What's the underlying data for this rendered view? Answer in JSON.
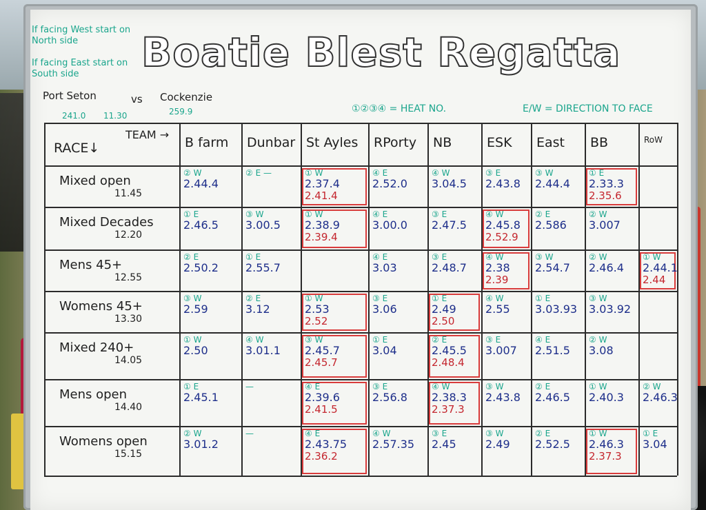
{
  "board": {
    "title": "Boatie Blest Regatta",
    "notes": [
      "If facing West start on North side",
      "If facing East start on South side"
    ],
    "matchup": {
      "left": "Port Seton",
      "vs": "vs",
      "right": "Cockenzie",
      "left_score": "241.0",
      "left_score2": "11.30",
      "right_score": "259.9"
    },
    "legend_heat": "①②③④ = HEAT NO.",
    "legend_dir": "E/W = DIRECTION TO FACE"
  },
  "table": {
    "corner_race": "RACE↓",
    "corner_team": "TEAM →",
    "teams": [
      "B farm",
      "Dunbar",
      "St Ayles",
      "RPorty",
      "NB",
      "ESK",
      "East",
      "BB",
      "RoW"
    ],
    "rows": [
      {
        "race": "Mixed open",
        "time": "11.45",
        "cells": [
          {
            "heat": "② W",
            "t1": "2.44.4",
            "t2": ""
          },
          {
            "heat": "② E —",
            "t1": "",
            "t2": ""
          },
          {
            "heat": "① W",
            "t1": "2.37.4",
            "t2": "2.41.4"
          },
          {
            "heat": "④ E",
            "t1": "2.52.0",
            "t2": ""
          },
          {
            "heat": "④ W",
            "t1": "3.04.5",
            "t2": ""
          },
          {
            "heat": "③ E",
            "t1": "2.43.8",
            "t2": ""
          },
          {
            "heat": "③ W",
            "t1": "2.44.4",
            "t2": ""
          },
          {
            "heat": "① E",
            "t1": "2.33.3",
            "t2": "2.35.6"
          },
          {
            "heat": "",
            "t1": "",
            "t2": ""
          }
        ]
      },
      {
        "race": "Mixed Decades",
        "time": "12.20",
        "cells": [
          {
            "heat": "① E",
            "t1": "2.46.5",
            "t2": ""
          },
          {
            "heat": "③ W",
            "t1": "3.00.5",
            "t2": ""
          },
          {
            "heat": "① W",
            "t1": "2.38.9",
            "t2": "2.39.4"
          },
          {
            "heat": "④ E",
            "t1": "3.00.0",
            "t2": ""
          },
          {
            "heat": "③ E",
            "t1": "2.47.5",
            "t2": ""
          },
          {
            "heat": "④ W",
            "t1": "2.45.8",
            "t2": "2.52.9"
          },
          {
            "heat": "② E",
            "t1": "2.586",
            "t2": ""
          },
          {
            "heat": "② W",
            "t1": "3.007",
            "t2": ""
          },
          {
            "heat": "",
            "t1": "",
            "t2": ""
          }
        ]
      },
      {
        "race": "Mens 45+",
        "time": "12.55",
        "cells": [
          {
            "heat": "② E",
            "t1": "2.50.2",
            "t2": ""
          },
          {
            "heat": "① E",
            "t1": "2.55.7",
            "t2": ""
          },
          {
            "heat": "",
            "t1": "",
            "t2": ""
          },
          {
            "heat": "④ E",
            "t1": "3.03",
            "t2": ""
          },
          {
            "heat": "③ E",
            "t1": "2.48.7",
            "t2": ""
          },
          {
            "heat": "④ W",
            "t1": "2.38",
            "t2": "2.39"
          },
          {
            "heat": "③ W",
            "t1": "2.54.7",
            "t2": ""
          },
          {
            "heat": "② W",
            "t1": "2.46.4",
            "t2": ""
          },
          {
            "heat": "① W",
            "t1": "2.44.1",
            "t2": "2.44"
          }
        ]
      },
      {
        "race": "Womens 45+",
        "time": "13.30",
        "cells": [
          {
            "heat": "③ W",
            "t1": "2.59",
            "t2": ""
          },
          {
            "heat": "② E",
            "t1": "3.12",
            "t2": ""
          },
          {
            "heat": "① W",
            "t1": "2.53",
            "t2": "2.52"
          },
          {
            "heat": "③ E",
            "t1": "3.06",
            "t2": ""
          },
          {
            "heat": "① E",
            "t1": "2.49",
            "t2": "2.50"
          },
          {
            "heat": "④ W",
            "t1": "2.55",
            "t2": ""
          },
          {
            "heat": "① E",
            "t1": "3.03.93",
            "t2": ""
          },
          {
            "heat": "③ W",
            "t1": "3.03.92",
            "t2": ""
          },
          {
            "heat": "",
            "t1": "",
            "t2": ""
          }
        ]
      },
      {
        "race": "Mixed 240+",
        "time": "14.05",
        "cells": [
          {
            "heat": "① W",
            "t1": "2.50",
            "t2": ""
          },
          {
            "heat": "④ W",
            "t1": "3.01.1",
            "t2": ""
          },
          {
            "heat": "③ W",
            "t1": "2.45.7",
            "t2": "2.45.7"
          },
          {
            "heat": "① E",
            "t1": "3.04",
            "t2": ""
          },
          {
            "heat": "② E",
            "t1": "2.45.5",
            "t2": "2.48.4"
          },
          {
            "heat": "③ E",
            "t1": "3.007",
            "t2": ""
          },
          {
            "heat": "④ E",
            "t1": "2.51.5",
            "t2": ""
          },
          {
            "heat": "② W",
            "t1": "3.08",
            "t2": ""
          },
          {
            "heat": "",
            "t1": "",
            "t2": ""
          }
        ]
      },
      {
        "race": "Mens open",
        "time": "14.40",
        "cells": [
          {
            "heat": "① E",
            "t1": "2.45.1",
            "t2": ""
          },
          {
            "heat": "—",
            "t1": "",
            "t2": ""
          },
          {
            "heat": "④ E",
            "t1": "2.39.6",
            "t2": "2.41.5"
          },
          {
            "heat": "③ E",
            "t1": "2.56.8",
            "t2": ""
          },
          {
            "heat": "④ W",
            "t1": "2.38.3",
            "t2": "2.37.3"
          },
          {
            "heat": "③ W",
            "t1": "2.43.8",
            "t2": ""
          },
          {
            "heat": "② E",
            "t1": "2.46.5",
            "t2": ""
          },
          {
            "heat": "① W",
            "t1": "2.40.3",
            "t2": ""
          },
          {
            "heat": "② W",
            "t1": "2.46.3",
            "t2": ""
          }
        ]
      },
      {
        "race": "Womens open",
        "time": "15.15",
        "cells": [
          {
            "heat": "② W",
            "t1": "3.01.2",
            "t2": ""
          },
          {
            "heat": "—",
            "t1": "",
            "t2": ""
          },
          {
            "heat": "④ E",
            "t1": "2.43.75",
            "t2": "2.36.2"
          },
          {
            "heat": "④ W",
            "t1": "2.57.35",
            "t2": ""
          },
          {
            "heat": "③ E",
            "t1": "2.45",
            "t2": ""
          },
          {
            "heat": "③ W",
            "t1": "2.49",
            "t2": ""
          },
          {
            "heat": "② E",
            "t1": "2.52.5",
            "t2": ""
          },
          {
            "heat": "① W",
            "t1": "2.46.3",
            "t2": "2.37.3"
          },
          {
            "heat": "① E",
            "t1": "3.04",
            "t2": ""
          }
        ]
      }
    ]
  }
}
